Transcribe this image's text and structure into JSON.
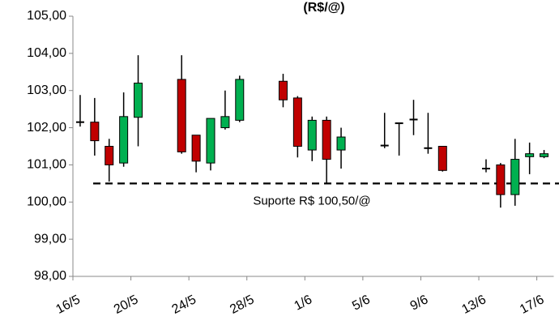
{
  "chart_data": {
    "type": "candlestick",
    "title": "(R$/@)",
    "categories": [
      "16/5",
      null,
      null,
      null,
      "20/5",
      null,
      null,
      null,
      "24/5",
      null,
      null,
      null,
      "28/5",
      null,
      null,
      null,
      "1/6",
      null,
      null,
      null,
      "5/6",
      null,
      null,
      null,
      "9/6",
      null,
      null,
      null,
      "13/6",
      null,
      null,
      null,
      "17/6"
    ],
    "open": [
      102.12,
      102.15,
      101.5,
      101.05,
      102.28,
      null,
      null,
      103.3,
      101.8,
      101.05,
      102.0,
      102.2,
      null,
      null,
      103.25,
      102.8,
      101.4,
      102.2,
      101.4,
      null,
      null,
      101.5,
      102.1,
      102.2,
      101.42,
      101.5,
      null,
      null,
      100.88,
      101.0,
      100.2,
      101.22,
      101.22
    ],
    "high": [
      102.88,
      102.8,
      101.7,
      102.95,
      103.95,
      null,
      null,
      103.95,
      101.8,
      102.25,
      103.0,
      103.4,
      null,
      null,
      103.45,
      102.85,
      102.3,
      102.3,
      102.0,
      null,
      null,
      102.4,
      102.1,
      102.75,
      102.4,
      101.5,
      null,
      null,
      101.15,
      101.05,
      101.7,
      101.6,
      101.4
    ],
    "low": [
      102.03,
      101.25,
      100.55,
      100.95,
      101.5,
      null,
      null,
      101.3,
      100.8,
      100.85,
      101.95,
      102.15,
      null,
      null,
      102.55,
      101.2,
      101.1,
      100.5,
      100.9,
      null,
      null,
      101.45,
      101.25,
      101.8,
      101.3,
      100.82,
      null,
      null,
      100.8,
      99.85,
      99.9,
      100.75,
      101.18
    ],
    "close": [
      102.15,
      101.65,
      101.0,
      102.3,
      103.2,
      null,
      null,
      101.35,
      101.1,
      102.25,
      102.3,
      103.3,
      null,
      null,
      102.75,
      101.5,
      102.2,
      101.15,
      101.75,
      null,
      null,
      101.52,
      102.12,
      102.22,
      101.45,
      100.85,
      null,
      null,
      100.9,
      100.2,
      101.15,
      101.3,
      101.3
    ],
    "up_color": "#00b050",
    "down_color": "#c00000",
    "ylim": [
      98,
      105
    ],
    "yticks": [
      {
        "value": 98,
        "label": "98,00"
      },
      {
        "value": 99,
        "label": "99,00"
      },
      {
        "value": 100,
        "label": "100,00"
      },
      {
        "value": 101,
        "label": "101,00"
      },
      {
        "value": 102,
        "label": "102,00"
      },
      {
        "value": 103,
        "label": "103,00"
      },
      {
        "value": 104,
        "label": "104,00"
      },
      {
        "value": 105,
        "label": "105,00"
      }
    ],
    "support": {
      "value": 100.5,
      "label": "Suporte R$ 100,50/@"
    }
  }
}
